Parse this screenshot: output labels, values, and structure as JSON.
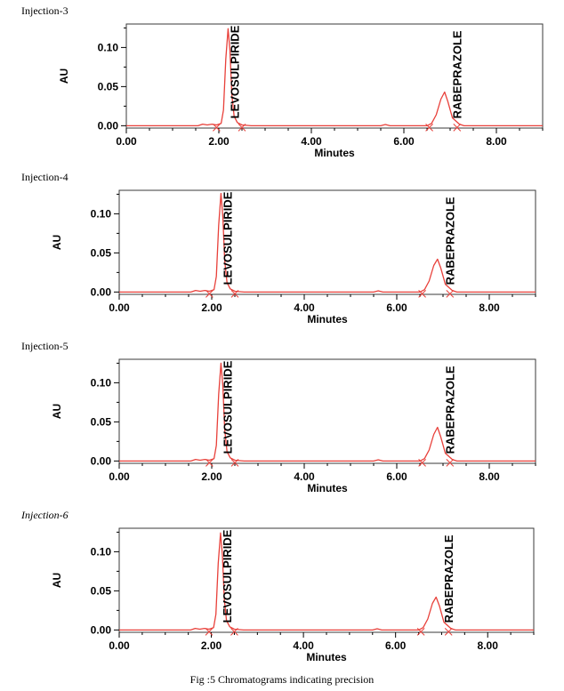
{
  "caption": "Fig :5  Chromatograms indicating precision",
  "chart_data": [
    {
      "type": "line",
      "panel_label": "Injection-3",
      "italic": false,
      "xlabel": "Minutes",
      "ylabel": "AU",
      "xlim": [
        0,
        9.0
      ],
      "ylim": [
        -0.003,
        0.13
      ],
      "xticks": [
        "0.00",
        "2.00",
        "4.00",
        "6.00",
        "8.00"
      ],
      "yticks": [
        "0.00",
        "0.05",
        "0.10"
      ],
      "grid": false,
      "series": [
        {
          "color": "#e8403a",
          "x": [
            0.0,
            1.55,
            1.65,
            1.75,
            1.85,
            1.95,
            2.05,
            2.1,
            2.15,
            2.2,
            2.24,
            2.28,
            2.33,
            2.4,
            2.5,
            2.7,
            3.0,
            5.5,
            5.6,
            5.7,
            6.5,
            6.6,
            6.7,
            6.8,
            6.88,
            6.95,
            7.05,
            7.2,
            7.3,
            9.0
          ],
          "y": [
            0.0,
            0.0,
            0.002,
            0.001,
            0.002,
            0.001,
            0.003,
            0.02,
            0.085,
            0.124,
            0.096,
            0.04,
            0.012,
            0.004,
            0.001,
            0.0,
            0.0,
            0.0,
            0.0015,
            0.0,
            0.0,
            0.003,
            0.014,
            0.034,
            0.043,
            0.031,
            0.01,
            0.002,
            0.0,
            0.0
          ]
        }
      ],
      "annotations": [
        {
          "text": "LEVOSULPIRIDE",
          "x": 2.24
        },
        {
          "text": "RABEPRAZOLE",
          "x": 7.05
        }
      ]
    },
    {
      "type": "line",
      "panel_label": "Injection-4",
      "italic": false,
      "xlabel": "Minutes",
      "ylabel": "AU",
      "xlim": [
        0,
        9.0
      ],
      "ylim": [
        -0.003,
        0.13
      ],
      "xticks": [
        "0.00",
        "2.00",
        "4.00",
        "6.00",
        "8.00"
      ],
      "yticks": [
        "0.00",
        "0.05",
        "0.10"
      ],
      "grid": false,
      "series": [
        {
          "color": "#e8403a",
          "x": [
            0.0,
            1.55,
            1.65,
            1.75,
            1.85,
            1.95,
            2.05,
            2.1,
            2.15,
            2.2,
            2.24,
            2.28,
            2.33,
            2.4,
            2.5,
            2.7,
            3.0,
            5.5,
            5.6,
            5.7,
            6.5,
            6.6,
            6.7,
            6.8,
            6.88,
            6.95,
            7.05,
            7.2,
            7.3,
            9.0
          ],
          "y": [
            0.0,
            0.0,
            0.002,
            0.001,
            0.002,
            0.001,
            0.003,
            0.02,
            0.085,
            0.126,
            0.096,
            0.04,
            0.012,
            0.004,
            0.001,
            0.0,
            0.0,
            0.0,
            0.0015,
            0.0,
            0.0,
            0.003,
            0.014,
            0.034,
            0.042,
            0.031,
            0.01,
            0.002,
            0.0,
            0.0
          ]
        }
      ],
      "annotations": [
        {
          "text": "LEVOSULPIRIDE",
          "x": 2.24
        },
        {
          "text": "RABEPRAZOLE",
          "x": 7.05
        }
      ]
    },
    {
      "type": "line",
      "panel_label": "Injection-5",
      "italic": false,
      "xlabel": "Minutes",
      "ylabel": "AU",
      "xlim": [
        0,
        9.0
      ],
      "ylim": [
        -0.003,
        0.13
      ],
      "xticks": [
        "0.00",
        "2.00",
        "4.00",
        "6.00",
        "8.00"
      ],
      "yticks": [
        "0.00",
        "0.05",
        "0.10"
      ],
      "grid": false,
      "series": [
        {
          "color": "#e8403a",
          "x": [
            0.0,
            1.55,
            1.65,
            1.75,
            1.85,
            1.95,
            2.05,
            2.1,
            2.15,
            2.2,
            2.24,
            2.28,
            2.33,
            2.4,
            2.5,
            2.7,
            3.0,
            5.5,
            5.6,
            5.7,
            6.5,
            6.6,
            6.7,
            6.8,
            6.88,
            6.95,
            7.05,
            7.2,
            7.3,
            9.0
          ],
          "y": [
            0.0,
            0.0,
            0.002,
            0.001,
            0.002,
            0.001,
            0.003,
            0.02,
            0.085,
            0.125,
            0.096,
            0.04,
            0.012,
            0.004,
            0.001,
            0.0,
            0.0,
            0.0,
            0.0015,
            0.0,
            0.0,
            0.003,
            0.014,
            0.034,
            0.043,
            0.031,
            0.01,
            0.002,
            0.0,
            0.0
          ]
        }
      ],
      "annotations": [
        {
          "text": "LEVOSULPIRIDE",
          "x": 2.24
        },
        {
          "text": "RABEPRAZOLE",
          "x": 7.05
        }
      ]
    },
    {
      "type": "line",
      "panel_label": "Injection-6",
      "italic": true,
      "xlabel": "Minutes",
      "ylabel": "AU",
      "xlim": [
        0,
        9.0
      ],
      "ylim": [
        -0.003,
        0.13
      ],
      "xticks": [
        "0.00",
        "2.00",
        "4.00",
        "6.00",
        "8.00"
      ],
      "yticks": [
        "0.00",
        "0.05",
        "0.10"
      ],
      "grid": false,
      "series": [
        {
          "color": "#e8403a",
          "x": [
            0.0,
            1.55,
            1.65,
            1.75,
            1.85,
            1.95,
            2.05,
            2.1,
            2.15,
            2.2,
            2.24,
            2.28,
            2.33,
            2.4,
            2.5,
            2.7,
            3.0,
            5.5,
            5.6,
            5.7,
            6.5,
            6.6,
            6.7,
            6.8,
            6.88,
            6.95,
            7.05,
            7.2,
            7.3,
            9.0
          ],
          "y": [
            0.0,
            0.0,
            0.002,
            0.001,
            0.002,
            0.001,
            0.003,
            0.02,
            0.085,
            0.124,
            0.096,
            0.04,
            0.012,
            0.004,
            0.001,
            0.0,
            0.0,
            0.0,
            0.0015,
            0.0,
            0.0,
            0.003,
            0.014,
            0.034,
            0.042,
            0.031,
            0.01,
            0.002,
            0.0,
            0.0
          ]
        }
      ],
      "annotations": [
        {
          "text": "LEVOSULPIRIDE",
          "x": 2.24
        },
        {
          "text": "RABEPRAZOLE",
          "x": 7.05
        }
      ]
    }
  ]
}
